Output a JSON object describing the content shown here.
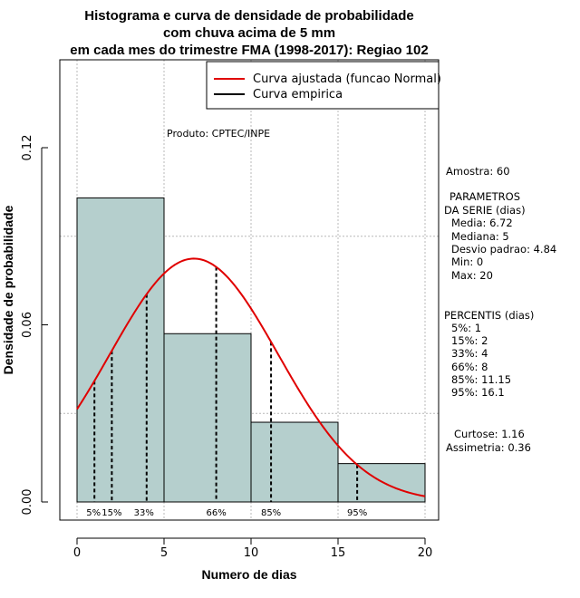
{
  "chart_data": {
    "type": "histogram",
    "title": [
      "Histograma e curva de densidade de probabilidade",
      "com chuva acima de 5 mm",
      "em cada mes do trimestre FMA (1998-2017): Regiao 102"
    ],
    "xlabel": "Numero de dias",
    "ylabel": "Densidade de probabilidade",
    "xlim": [
      0,
      20
    ],
    "ylim": [
      0,
      0.12
    ],
    "x_ticks": [
      "0",
      "5",
      "10",
      "15",
      "20"
    ],
    "y_ticks": [
      "0.00",
      "0.06",
      "0.12"
    ],
    "grid": true,
    "bins": [
      {
        "start": 0,
        "end": 5,
        "density": 0.103
      },
      {
        "start": 5,
        "end": 10,
        "density": 0.057
      },
      {
        "start": 10,
        "end": 15,
        "density": 0.027
      },
      {
        "start": 15,
        "end": 20,
        "density": 0.013
      }
    ],
    "bar_color": "#b5cfcd",
    "curve_color": "#e00000",
    "normal_fit": {
      "mean": 6.72,
      "sd": 4.84
    },
    "percentile_markers": [
      {
        "label": "5%",
        "x": 1
      },
      {
        "label": "15%",
        "x": 2
      },
      {
        "label": "33%",
        "x": 4
      },
      {
        "label": "66%",
        "x": 8
      },
      {
        "label": "85%",
        "x": 11.15
      },
      {
        "label": "95%",
        "x": 16.1
      }
    ],
    "legend": {
      "position": "top-right",
      "entries": [
        {
          "label": "Curva ajustada (funcao Normal)",
          "color": "#e00000"
        },
        {
          "label": "Curva empirica",
          "color": "#000000"
        }
      ]
    },
    "annotation": "Produto: CPTEC/INPE"
  },
  "stats": {
    "amostra": "Amostra: 60",
    "param_title_1": "PARAMETROS",
    "param_title_2": "DA SERIE (dias)",
    "media": "Media: 6.72",
    "mediana": "Mediana: 5",
    "desvio": "Desvio padrao: 4.84",
    "min": "Min: 0",
    "max": "Max: 20",
    "percentis_title": "PERCENTIS (dias)",
    "p5": "5%: 1",
    "p15": "15%: 2",
    "p33": "33%: 4",
    "p66": "66%: 8",
    "p85": "85%: 11.15",
    "p95": "95%: 16.1",
    "curtose": "Curtose: 1.16",
    "assimetria": "Assimetria: 0.36"
  }
}
